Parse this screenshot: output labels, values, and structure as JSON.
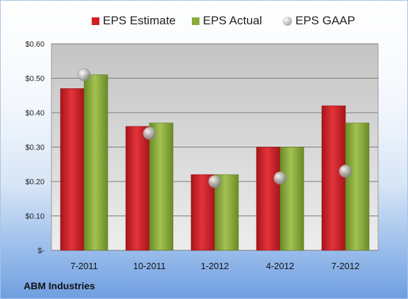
{
  "colors": {
    "estimate": "#d11f26",
    "actual": "#8aab3a",
    "gaap": "#b5b5b5"
  },
  "company": "ABM Industries",
  "chart_data": {
    "type": "bar",
    "categories": [
      "7-2011",
      "10-2011",
      "1-2012",
      "4-2012",
      "7-2012"
    ],
    "series": [
      {
        "name": "EPS Estimate",
        "type": "bar",
        "values": [
          0.47,
          0.36,
          0.22,
          0.3,
          0.42
        ]
      },
      {
        "name": "EPS Actual",
        "type": "bar",
        "values": [
          0.51,
          0.37,
          0.22,
          0.3,
          0.37
        ]
      },
      {
        "name": "EPS GAAP",
        "type": "scatter",
        "values": [
          0.51,
          0.34,
          0.2,
          0.21,
          0.23
        ]
      }
    ],
    "ylim": [
      0,
      0.6
    ],
    "yticks": [
      0,
      0.1,
      0.2,
      0.3,
      0.4,
      0.5,
      0.6
    ],
    "ytick_labels": [
      "$-",
      "$0.10",
      "$0.20",
      "$0.30",
      "$0.40",
      "$0.50",
      "$0.60"
    ],
    "grid": true,
    "legend_position": "top",
    "title": "",
    "xlabel": "",
    "ylabel": ""
  }
}
